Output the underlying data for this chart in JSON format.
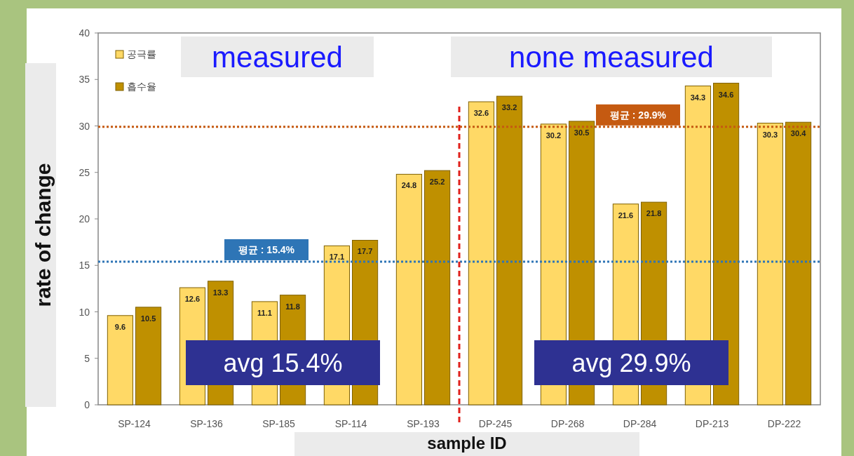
{
  "chart_data": {
    "type": "bar",
    "xlabel": "sample ID",
    "ylabel": "rate of change",
    "categories": [
      "SP-124",
      "SP-136",
      "SP-185",
      "SP-114",
      "SP-193",
      "DP-245",
      "DP-268",
      "DP-284",
      "DP-213",
      "DP-222"
    ],
    "series": [
      {
        "name": "공극률",
        "color": "#ffd966",
        "values": [
          9.6,
          12.6,
          11.1,
          17.1,
          24.8,
          32.6,
          30.2,
          21.6,
          34.3,
          30.3
        ]
      },
      {
        "name": "흡수율",
        "color": "#bf9000",
        "values": [
          10.5,
          13.3,
          11.8,
          17.7,
          25.2,
          33.2,
          30.5,
          21.8,
          34.6,
          30.4
        ]
      }
    ],
    "ylim": [
      0,
      40
    ],
    "yticks": [
      0,
      5,
      10,
      15,
      20,
      25,
      30,
      35,
      40
    ],
    "data_labels": true,
    "legend": "top left",
    "grid": false,
    "ref_lines": [
      {
        "axis": "y",
        "value": 15.4,
        "label": "평균 : 15.4%",
        "color": "#2e75b6",
        "line_style": "dotted"
      },
      {
        "axis": "y",
        "value": 29.9,
        "label": "평균 : 29.9%",
        "color": "#c55a11",
        "line_style": "dotted"
      }
    ],
    "annotations": [
      "measured",
      "none measured",
      "avg 15.4%",
      "avg 29.9%"
    ]
  }
}
